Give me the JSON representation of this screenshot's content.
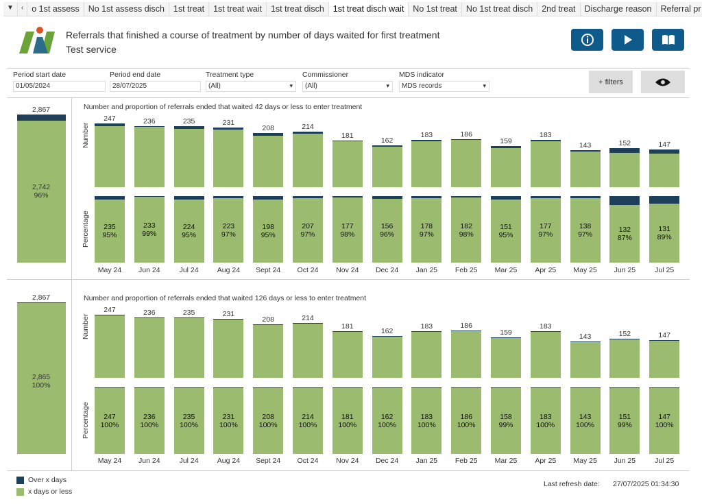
{
  "tabs": [
    "o 1st assess",
    "No 1st assess disch",
    "1st treat",
    "1st treat wait",
    "1st treat disch",
    "1st treat disch wait",
    "No 1st treat",
    "No 1st treat disch",
    "2nd treat",
    "Discharge reason",
    "Referral pr"
  ],
  "active_tab": 5,
  "header": {
    "title": "Referrals that finished a course of treatment by number of days waited for first treatment",
    "subtitle": "Test service",
    "buttons": [
      "info-icon",
      "play-icon",
      "book-icon"
    ]
  },
  "filters": {
    "start": {
      "label": "Period start date",
      "value": "01/05/2024"
    },
    "end": {
      "label": "Period end date",
      "value": "28/07/2025"
    },
    "treatment": {
      "label": "Treatment type",
      "value": "(All)"
    },
    "commissioner": {
      "label": "Commissioner",
      "value": "(All)"
    },
    "mds": {
      "label": "MDS indicator",
      "value": "MDS records"
    },
    "more_filters": "+ filters"
  },
  "colors": {
    "over": "#1e3f5a",
    "within": "#9bbb6e",
    "button": "#0e5a8a"
  },
  "chart_data": [
    {
      "type": "bar",
      "stacked": true,
      "title": "Number and proportion of referrals ended that waited 42 days or less to enter treatment",
      "ylabels": [
        "Number",
        "Percentage"
      ],
      "categories": [
        "May 24",
        "Jun 24",
        "Jul 24",
        "Aug 24",
        "Sept 24",
        "Oct 24",
        "Nov 24",
        "Dec 24",
        "Jan 25",
        "Feb 25",
        "Mar 25",
        "Apr 25",
        "May 25",
        "Jun 25",
        "Jul 25"
      ],
      "totals": [
        247,
        236,
        235,
        231,
        208,
        214,
        181,
        162,
        183,
        186,
        159,
        183,
        143,
        152,
        147
      ],
      "within": [
        235,
        233,
        224,
        223,
        198,
        207,
        177,
        156,
        178,
        182,
        151,
        177,
        138,
        132,
        131
      ],
      "percent": [
        "95%",
        "99%",
        "95%",
        "97%",
        "95%",
        "97%",
        "98%",
        "96%",
        "97%",
        "98%",
        "95%",
        "97%",
        "97%",
        "87%",
        "89%"
      ],
      "summary": {
        "total": "2,867",
        "within": "2,742",
        "percent": "96%",
        "total_value": 2867,
        "within_value": 2742
      }
    },
    {
      "type": "bar",
      "stacked": true,
      "title": "Number and proportion of referrals ended that waited 126 days or less to enter treatment",
      "ylabels": [
        "Number",
        "Percentage"
      ],
      "categories": [
        "May 24",
        "Jun 24",
        "Jul 24",
        "Aug 24",
        "Sept 24",
        "Oct 24",
        "Nov 24",
        "Dec 24",
        "Jan 25",
        "Feb 25",
        "Mar 25",
        "Apr 25",
        "May 25",
        "Jun 25",
        "Jul 25"
      ],
      "totals": [
        247,
        236,
        235,
        231,
        208,
        214,
        181,
        162,
        183,
        186,
        159,
        183,
        143,
        152,
        147
      ],
      "within": [
        247,
        236,
        235,
        231,
        208,
        214,
        181,
        162,
        183,
        186,
        158,
        183,
        143,
        151,
        147
      ],
      "percent": [
        "100%",
        "100%",
        "100%",
        "100%",
        "100%",
        "100%",
        "100%",
        "100%",
        "100%",
        "100%",
        "99%",
        "100%",
        "100%",
        "99%",
        "100%"
      ],
      "summary": {
        "total": "2,867",
        "within": "2,865",
        "percent": "100%",
        "total_value": 2867,
        "within_value": 2865
      }
    }
  ],
  "legend": {
    "over": "Over x days",
    "within": "x days or less"
  },
  "footer": {
    "label": "Last refresh date:",
    "value": "27/07/2025 01:34:30"
  }
}
